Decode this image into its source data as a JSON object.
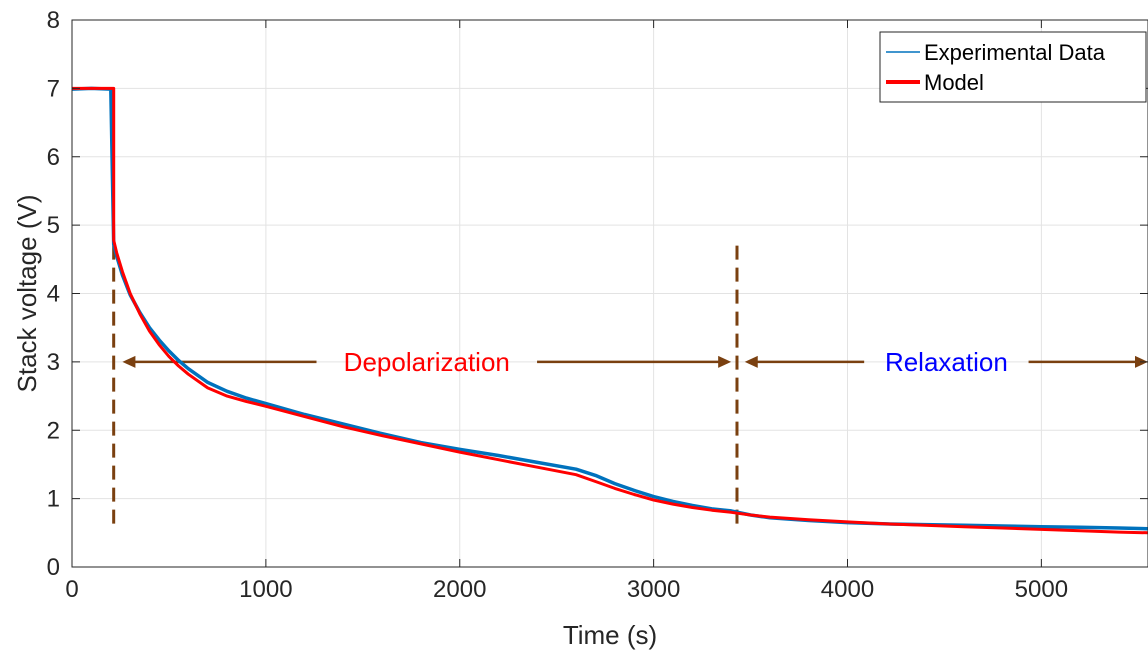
{
  "chart_data": {
    "type": "line",
    "xlabel": "Time (s)",
    "ylabel": "Stack voltage (V)",
    "xlim": [
      0,
      5550
    ],
    "ylim": [
      0,
      8
    ],
    "xticks": [
      0,
      1000,
      2000,
      3000,
      4000,
      5000
    ],
    "yticks": [
      0,
      1,
      2,
      3,
      4,
      5,
      6,
      7,
      8
    ],
    "grid": true,
    "legend": {
      "placement": "top-right",
      "entries": [
        "Experimental Data",
        "Model"
      ]
    },
    "series": [
      {
        "name": "Experimental Data",
        "color": "#0072bd",
        "x": [
          0,
          100,
          200,
          215,
          230,
          260,
          300,
          350,
          400,
          450,
          500,
          550,
          600,
          700,
          800,
          900,
          1000,
          1200,
          1400,
          1600,
          1800,
          2000,
          2200,
          2400,
          2600,
          2700,
          2800,
          2900,
          3000,
          3100,
          3200,
          3300,
          3400,
          3450,
          3500,
          3600,
          3800,
          4000,
          4200,
          4400,
          4600,
          4800,
          5000,
          5200,
          5400,
          5550
        ],
        "y": [
          6.99,
          7.0,
          6.99,
          4.72,
          4.55,
          4.27,
          3.98,
          3.72,
          3.5,
          3.32,
          3.16,
          3.02,
          2.9,
          2.7,
          2.57,
          2.47,
          2.39,
          2.23,
          2.09,
          1.95,
          1.82,
          1.72,
          1.63,
          1.53,
          1.43,
          1.34,
          1.22,
          1.12,
          1.03,
          0.96,
          0.9,
          0.85,
          0.82,
          0.79,
          0.76,
          0.72,
          0.68,
          0.65,
          0.63,
          0.62,
          0.61,
          0.6,
          0.59,
          0.58,
          0.57,
          0.56
        ]
      },
      {
        "name": "Model",
        "color": "#ff0000",
        "x": [
          0,
          100,
          200,
          215,
          215.1,
          230,
          260,
          300,
          350,
          400,
          450,
          500,
          550,
          600,
          700,
          800,
          900,
          1000,
          1200,
          1400,
          1600,
          1800,
          2000,
          2200,
          2400,
          2600,
          2700,
          2800,
          2900,
          3000,
          3100,
          3200,
          3300,
          3400,
          3450,
          3500,
          3600,
          3800,
          4000,
          4200,
          4400,
          4600,
          4800,
          5000,
          5200,
          5400,
          5550
        ],
        "y": [
          7.0,
          7.0,
          7.0,
          7.0,
          4.78,
          4.6,
          4.32,
          4.0,
          3.7,
          3.45,
          3.25,
          3.08,
          2.94,
          2.82,
          2.62,
          2.5,
          2.42,
          2.35,
          2.2,
          2.05,
          1.92,
          1.8,
          1.68,
          1.57,
          1.46,
          1.35,
          1.25,
          1.15,
          1.06,
          0.98,
          0.92,
          0.87,
          0.83,
          0.8,
          0.78,
          0.76,
          0.73,
          0.69,
          0.66,
          0.63,
          0.61,
          0.59,
          0.57,
          0.55,
          0.53,
          0.51,
          0.5
        ]
      }
    ],
    "vlines": [
      {
        "x": 215,
        "y_range": [
          0.6,
          4.7
        ],
        "color": "#7a4010",
        "style": "dashed"
      },
      {
        "x": 3430,
        "y_range": [
          0.6,
          4.7
        ],
        "color": "#7a4010",
        "style": "dashed"
      }
    ],
    "annotations": [
      {
        "text": "Depolarization",
        "color": "#ff0000",
        "x_range": [
          260,
          3400
        ],
        "y": 3,
        "arrow_color": "#7a4010"
      },
      {
        "text": "Relaxation",
        "color": "#0000ff",
        "x_range": [
          3470,
          5550
        ],
        "y": 3,
        "arrow_color": "#7a4010"
      }
    ]
  }
}
